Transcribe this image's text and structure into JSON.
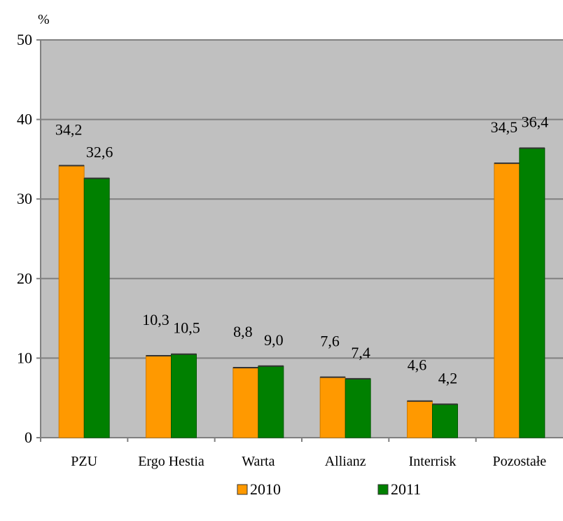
{
  "chart_data": {
    "type": "bar",
    "ylabel": "%",
    "ylim": [
      0,
      50
    ],
    "yticks": [
      0,
      10,
      20,
      30,
      40,
      50
    ],
    "grid": true,
    "legend_position": "bottom",
    "categories": [
      "PZU",
      "Ergo Hestia",
      "Warta",
      "Allianz",
      "Interrisk",
      "Pozostałe"
    ],
    "series": [
      {
        "name": "2010",
        "color": "#ff9900",
        "values": [
          34.2,
          10.3,
          8.8,
          7.6,
          4.6,
          34.5
        ],
        "labels": [
          "34,2",
          "10,3",
          "8,8",
          "7,6",
          "4,6",
          "34,5"
        ]
      },
      {
        "name": "2011",
        "color": "#008000",
        "values": [
          32.6,
          10.5,
          9.0,
          7.4,
          4.2,
          36.4
        ],
        "labels": [
          "32,6",
          "10,5",
          "9,0",
          "7,4",
          "4,2",
          "36,4"
        ]
      }
    ],
    "plot_background": "#c0c0c0"
  }
}
